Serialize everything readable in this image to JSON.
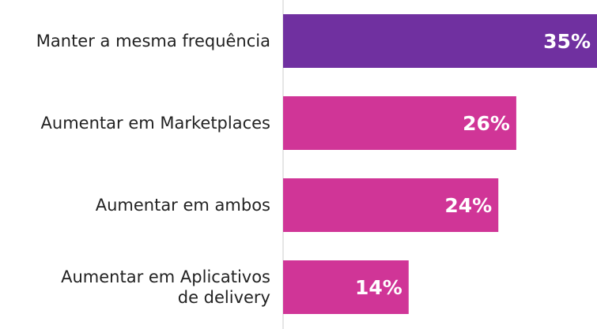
{
  "chart_data": {
    "type": "hbar",
    "categories": [
      "Manter a mesma frequência",
      "Aumentar em Marketplaces",
      "Aumentar em ambos",
      "Aumentar  em Aplicativos\nde delivery"
    ],
    "values": [
      35,
      26,
      24,
      14
    ],
    "value_labels": [
      "35%",
      "26%",
      "24%",
      "14%"
    ],
    "colors": [
      "#7030a0",
      "#d03597",
      "#d03597",
      "#d03597"
    ]
  }
}
